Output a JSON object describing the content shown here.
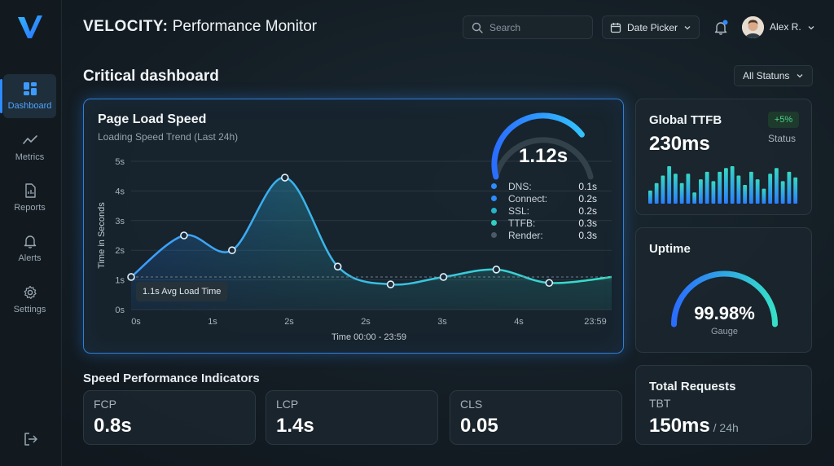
{
  "app": {
    "brand": "VELOCITY:",
    "title": " Performance Monitor"
  },
  "colors": {
    "accent": "#2d8cff",
    "teal": "#2fd1c0",
    "bg": "#141d24",
    "positive": "#4fd18b"
  },
  "sidebar": {
    "items": [
      {
        "label": "Dashboard",
        "icon": "dashboard-icon",
        "active": true
      },
      {
        "label": "Metrics",
        "icon": "metrics-icon"
      },
      {
        "label": "Reports",
        "icon": "reports-icon"
      },
      {
        "label": "Alerts",
        "icon": "bell-icon"
      },
      {
        "label": "Settings",
        "icon": "gear-icon"
      }
    ],
    "logout_icon": "logout-icon"
  },
  "header": {
    "search_placeholder": "Search",
    "date_picker_label": "Date Picker",
    "user_name": "Alex R."
  },
  "page": {
    "title": "Critical dashboard",
    "status_filter": "All Statuns"
  },
  "main_card": {
    "title": "Page Load Speed",
    "subtitle": "Loading Speed Trend (Last 24h)",
    "gauge_value": "1.12s",
    "gauge_fraction": 0.75,
    "breakdown": [
      {
        "label": "DNS:",
        "value": "0.1s",
        "color": "#2d8cff"
      },
      {
        "label": "Connect:",
        "value": "0.2s",
        "color": "#2d8cff"
      },
      {
        "label": "SSL:",
        "value": "0.2s",
        "color": "#27b3c9"
      },
      {
        "label": "TTFB:",
        "value": "0.3s",
        "color": "#2fd1c0"
      },
      {
        "label": "Render:",
        "value": "0.3s",
        "color": "#4a5a66"
      }
    ],
    "avg_tooltip": "1.1s Avg Load Time"
  },
  "chart_data": {
    "type": "area",
    "ylabel": "Time in Seconds",
    "xlabel": "Time 00:00 - 23:59",
    "ylim": [
      0,
      5
    ],
    "y_ticks": [
      "0s",
      "1s",
      "2s",
      "3s",
      "4s",
      "5s"
    ],
    "x_ticks": [
      "0s",
      "1s",
      "2s",
      "2s",
      "3s",
      "4s",
      "23:59"
    ],
    "avg_line": 1.1,
    "points": [
      {
        "x": 0.0,
        "y": 1.1
      },
      {
        "x": 0.11,
        "y": 2.5
      },
      {
        "x": 0.21,
        "y": 2.0
      },
      {
        "x": 0.32,
        "y": 4.45
      },
      {
        "x": 0.43,
        "y": 1.45
      },
      {
        "x": 0.54,
        "y": 0.85
      },
      {
        "x": 0.65,
        "y": 1.1
      },
      {
        "x": 0.76,
        "y": 1.35
      },
      {
        "x": 0.87,
        "y": 0.9
      },
      {
        "x": 1.0,
        "y": 1.1
      }
    ],
    "markers": [
      0,
      1,
      2,
      3,
      4,
      5,
      6,
      7,
      8
    ],
    "grid": true
  },
  "ttfb": {
    "title": "Global TTFB",
    "value": "230ms",
    "badge": "+5%",
    "status_label": "Status",
    "bars": [
      0.35,
      0.55,
      0.75,
      1.0,
      0.8,
      0.55,
      0.8,
      0.3,
      0.65,
      0.85,
      0.6,
      0.85,
      0.95,
      1.0,
      0.75,
      0.5,
      0.85,
      0.65,
      0.4,
      0.8,
      0.95,
      0.6,
      0.85,
      0.7
    ]
  },
  "uptime": {
    "title": "Uptime",
    "value": "99.98%",
    "label": "Gauge",
    "fraction": 0.9998
  },
  "requests": {
    "title": "Total Requests",
    "label": "TBT",
    "value": "150ms",
    "unit": " / 24h"
  },
  "indicators": {
    "title": "Speed Performance Indicators",
    "items": [
      {
        "label": "FCP",
        "value": "0.8s"
      },
      {
        "label": "LCP",
        "value": "1.4s"
      },
      {
        "label": "CLS",
        "value": "0.05"
      }
    ]
  }
}
